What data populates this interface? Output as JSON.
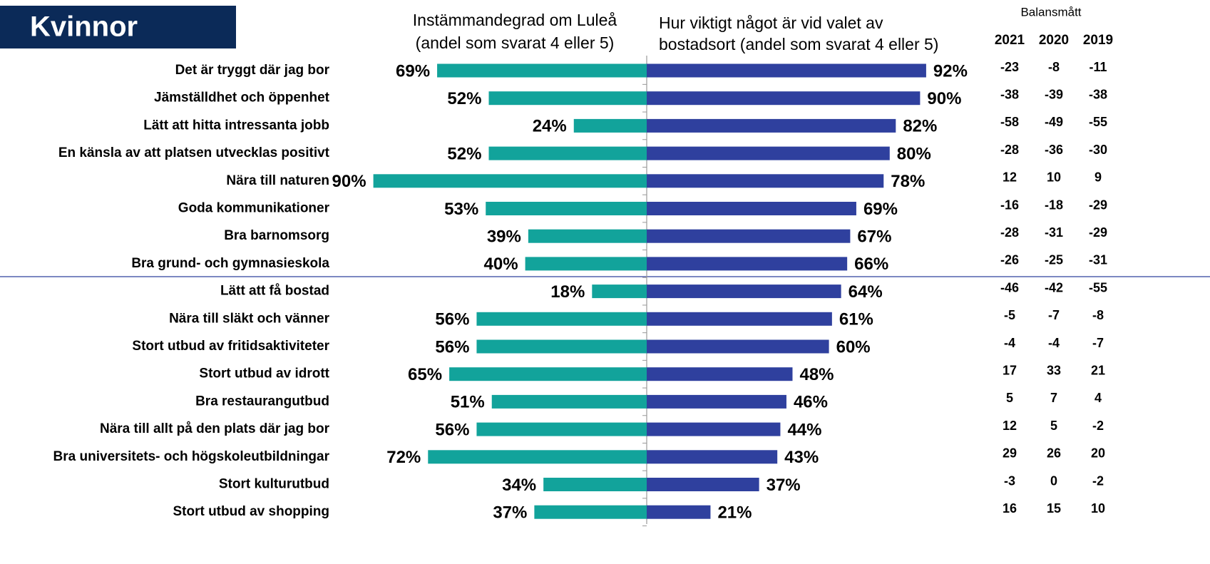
{
  "chart_data": {
    "type": "butterfly",
    "title": "Kvinnor",
    "left_header": [
      "Instämmandegrad om Luleå",
      "(andel som svarat 4 eller 5)"
    ],
    "right_header": [
      "Hur viktigt något är vid valet av",
      "bostadsort (andel som svarat 4 eller 5)"
    ],
    "xlim": [
      0,
      100
    ],
    "categories": [
      "Det är tryggt där jag bor",
      "Jämställdhet och öppenhet",
      "Lätt att hitta intressanta jobb",
      "En känsla av att platsen utvecklas positivt",
      "Nära till naturen",
      "Goda kommunikationer",
      "Bra barnomsorg",
      "Bra grund- och gymnasieskola",
      "Lätt att få bostad",
      "Nära till släkt och vänner",
      "Stort utbud av fritidsaktiviteter",
      "Stort utbud av idrott",
      "Bra restaurangutbud",
      "Nära till allt på den plats där jag bor",
      "Bra universitets- och högskoleutbildningar",
      "Stort kulturutbud",
      "Stort utbud av shopping"
    ],
    "series": [
      {
        "color": "#12a39b",
        "side": "left",
        "values": [
          69,
          52,
          24,
          52,
          90,
          53,
          39,
          40,
          18,
          56,
          56,
          65,
          51,
          56,
          72,
          34,
          37
        ],
        "value_labels": [
          "69%",
          "52%",
          "24%",
          "52%",
          "90%",
          "53%",
          "39%",
          "40%",
          "18%",
          "56%",
          "56%",
          "65%",
          "51%",
          "56%",
          "72%",
          "34%",
          "37%"
        ]
      },
      {
        "color": "#2f409e",
        "side": "right",
        "values": [
          92,
          90,
          82,
          80,
          78,
          69,
          67,
          66,
          64,
          61,
          60,
          48,
          46,
          44,
          43,
          37,
          21
        ],
        "value_labels": [
          "92%",
          "90%",
          "82%",
          "80%",
          "78%",
          "69%",
          "67%",
          "66%",
          "64%",
          "61%",
          "60%",
          "48%",
          "46%",
          "44%",
          "43%",
          "37%",
          "21%"
        ]
      }
    ],
    "balance": {
      "title": "Balansmått",
      "years": [
        2021,
        2020,
        2019
      ],
      "rows": [
        [
          -23,
          -8,
          -11
        ],
        [
          -38,
          -39,
          -38
        ],
        [
          -58,
          -49,
          -55
        ],
        [
          -28,
          -36,
          -30
        ],
        [
          12,
          10,
          9
        ],
        [
          -16,
          -18,
          -29
        ],
        [
          -28,
          -31,
          -29
        ],
        [
          -26,
          -25,
          -31
        ],
        [
          -46,
          -42,
          -55
        ],
        [
          -5,
          -7,
          -8
        ],
        [
          -4,
          -4,
          -7
        ],
        [
          17,
          33,
          21
        ],
        [
          5,
          7,
          4
        ],
        [
          12,
          5,
          -2
        ],
        [
          29,
          26,
          20
        ],
        [
          -3,
          0,
          -2
        ],
        [
          16,
          15,
          10
        ]
      ]
    }
  }
}
